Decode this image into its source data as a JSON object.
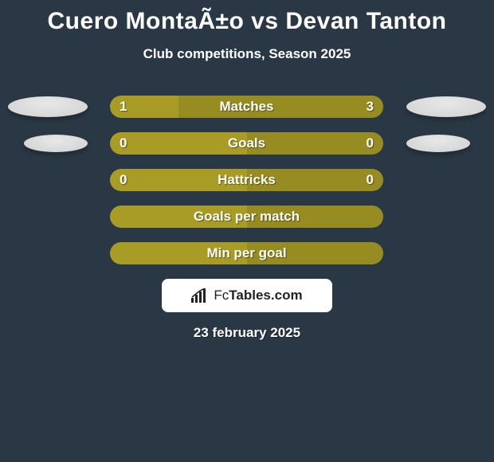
{
  "title": "Cuero MontaÃ±o vs Devan Tanton",
  "subtitle": "Club competitions, Season 2025",
  "date": "23 february 2025",
  "logo_text_1": "Fc",
  "logo_text_2": "Tables.com",
  "colors": {
    "background": "#2a3845",
    "olive": "#a89c27",
    "olive_dark": "#978c22",
    "ellipse_light": "#e8e8e8",
    "ellipse_shadow": "#d0d0d0"
  },
  "rows": [
    {
      "label": "Matches",
      "left_val": "1",
      "right_val": "3",
      "left_pct": 25,
      "right_pct": 75,
      "left_color": "#a89c27",
      "right_color": "#978c22",
      "show_left_ellipse": true,
      "show_right_ellipse": true,
      "ellipse_small": false
    },
    {
      "label": "Goals",
      "left_val": "0",
      "right_val": "0",
      "left_pct": 50,
      "right_pct": 50,
      "left_color": "#a89c27",
      "right_color": "#978c22",
      "show_left_ellipse": true,
      "show_right_ellipse": true,
      "ellipse_small": true
    },
    {
      "label": "Hattricks",
      "left_val": "0",
      "right_val": "0",
      "left_pct": 50,
      "right_pct": 50,
      "left_color": "#a89c27",
      "right_color": "#978c22",
      "show_left_ellipse": false,
      "show_right_ellipse": false,
      "ellipse_small": false
    },
    {
      "label": "Goals per match",
      "left_val": "",
      "right_val": "",
      "left_pct": 50,
      "right_pct": 50,
      "left_color": "#a89c27",
      "right_color": "#978c22",
      "show_left_ellipse": false,
      "show_right_ellipse": false,
      "ellipse_small": false
    },
    {
      "label": "Min per goal",
      "left_val": "",
      "right_val": "",
      "left_pct": 50,
      "right_pct": 50,
      "left_color": "#a89c27",
      "right_color": "#978c22",
      "show_left_ellipse": false,
      "show_right_ellipse": false,
      "ellipse_small": false
    }
  ]
}
